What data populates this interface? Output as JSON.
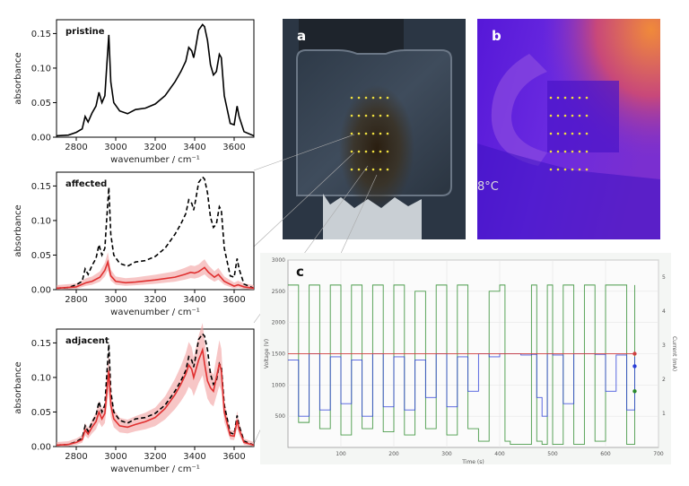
{
  "chart_data": [
    {
      "type": "line",
      "title": "pristine",
      "xlabel": "wavenumber / cm⁻¹",
      "ylabel": "absorbance",
      "xlim": [
        2700,
        3700
      ],
      "ylim": [
        0,
        0.17
      ],
      "xticks": [
        "2800",
        "3000",
        "3200",
        "3400",
        "3600"
      ],
      "yticks": [
        "0.00",
        "0.05",
        "0.10",
        "0.15"
      ],
      "series": [
        {
          "color": "#000000",
          "style": "solid",
          "x": [
            2700,
            2760,
            2800,
            2830,
            2845,
            2860,
            2880,
            2900,
            2915,
            2930,
            2945,
            2955,
            2965,
            2975,
            2990,
            3020,
            3060,
            3100,
            3150,
            3200,
            3250,
            3300,
            3330,
            3355,
            3370,
            3385,
            3395,
            3405,
            3420,
            3440,
            3450,
            3465,
            3480,
            3495,
            3510,
            3525,
            3535,
            3550,
            3580,
            3600,
            3615,
            3625,
            3650,
            3700
          ],
          "y": [
            0.002,
            0.003,
            0.007,
            0.012,
            0.03,
            0.022,
            0.035,
            0.045,
            0.065,
            0.05,
            0.06,
            0.105,
            0.148,
            0.08,
            0.05,
            0.038,
            0.034,
            0.04,
            0.042,
            0.048,
            0.06,
            0.08,
            0.095,
            0.11,
            0.13,
            0.125,
            0.115,
            0.13,
            0.155,
            0.163,
            0.16,
            0.14,
            0.105,
            0.09,
            0.095,
            0.12,
            0.115,
            0.06,
            0.02,
            0.018,
            0.045,
            0.03,
            0.008,
            0.002
          ]
        }
      ]
    },
    {
      "type": "line",
      "title": "affected",
      "xlabel": "wavenumber / cm⁻¹",
      "ylabel": "absorbance",
      "xlim": [
        2700,
        3700
      ],
      "ylim": [
        0,
        0.17
      ],
      "xticks": [
        "2800",
        "3000",
        "3200",
        "3400",
        "3600"
      ],
      "yticks": [
        "0.00",
        "0.05",
        "0.10",
        "0.15"
      ],
      "series": [
        {
          "color": "#000000",
          "style": "dashed",
          "x": [
            2700,
            2760,
            2800,
            2830,
            2845,
            2860,
            2880,
            2900,
            2915,
            2930,
            2945,
            2955,
            2965,
            2975,
            2990,
            3020,
            3060,
            3100,
            3150,
            3200,
            3250,
            3300,
            3330,
            3355,
            3370,
            3385,
            3395,
            3405,
            3420,
            3440,
            3450,
            3465,
            3480,
            3495,
            3510,
            3525,
            3535,
            3550,
            3580,
            3600,
            3615,
            3625,
            3650,
            3700
          ],
          "y": [
            0.002,
            0.003,
            0.007,
            0.012,
            0.03,
            0.022,
            0.035,
            0.045,
            0.065,
            0.05,
            0.06,
            0.105,
            0.148,
            0.08,
            0.05,
            0.038,
            0.034,
            0.04,
            0.042,
            0.048,
            0.06,
            0.08,
            0.095,
            0.11,
            0.13,
            0.125,
            0.115,
            0.13,
            0.155,
            0.163,
            0.16,
            0.14,
            0.105,
            0.09,
            0.095,
            0.12,
            0.115,
            0.06,
            0.02,
            0.018,
            0.045,
            0.03,
            0.008,
            0.002
          ]
        },
        {
          "color": "#e03030",
          "style": "solid",
          "x": [
            2700,
            2800,
            2850,
            2880,
            2920,
            2945,
            2960,
            2975,
            3000,
            3050,
            3100,
            3200,
            3300,
            3350,
            3380,
            3400,
            3420,
            3440,
            3450,
            3470,
            3500,
            3520,
            3550,
            3600,
            3620,
            3650,
            3700
          ],
          "y": [
            0.002,
            0.004,
            0.01,
            0.012,
            0.018,
            0.028,
            0.04,
            0.02,
            0.012,
            0.01,
            0.011,
            0.014,
            0.018,
            0.022,
            0.025,
            0.024,
            0.026,
            0.03,
            0.032,
            0.025,
            0.018,
            0.022,
            0.012,
            0.005,
            0.007,
            0.004,
            0.002
          ]
        }
      ]
    },
    {
      "type": "line",
      "title": "adjacent",
      "xlabel": "wavenumber / cm⁻¹",
      "ylabel": "absorbance",
      "xlim": [
        2700,
        3700
      ],
      "ylim": [
        0,
        0.17
      ],
      "xticks": [
        "2800",
        "3000",
        "3200",
        "3400",
        "3600"
      ],
      "yticks": [
        "0.00",
        "0.05",
        "0.10",
        "0.15"
      ],
      "series": [
        {
          "color": "#000000",
          "style": "dashed",
          "x": [
            2700,
            2760,
            2800,
            2830,
            2845,
            2860,
            2880,
            2900,
            2915,
            2930,
            2945,
            2955,
            2965,
            2975,
            2990,
            3020,
            3060,
            3100,
            3150,
            3200,
            3250,
            3300,
            3330,
            3355,
            3370,
            3385,
            3395,
            3405,
            3420,
            3440,
            3450,
            3465,
            3480,
            3495,
            3510,
            3525,
            3535,
            3550,
            3580,
            3600,
            3615,
            3625,
            3650,
            3700
          ],
          "y": [
            0.002,
            0.003,
            0.007,
            0.012,
            0.03,
            0.022,
            0.035,
            0.045,
            0.065,
            0.05,
            0.06,
            0.105,
            0.148,
            0.08,
            0.05,
            0.038,
            0.034,
            0.04,
            0.042,
            0.048,
            0.06,
            0.08,
            0.095,
            0.11,
            0.13,
            0.125,
            0.115,
            0.13,
            0.155,
            0.163,
            0.16,
            0.14,
            0.105,
            0.09,
            0.095,
            0.12,
            0.115,
            0.06,
            0.02,
            0.018,
            0.045,
            0.03,
            0.008,
            0.002
          ]
        },
        {
          "color": "#e03030",
          "style": "solid",
          "x": [
            2700,
            2760,
            2800,
            2830,
            2845,
            2860,
            2880,
            2900,
            2915,
            2930,
            2945,
            2955,
            2965,
            2975,
            2990,
            3020,
            3060,
            3100,
            3150,
            3200,
            3250,
            3300,
            3330,
            3355,
            3370,
            3385,
            3395,
            3405,
            3420,
            3440,
            3450,
            3465,
            3480,
            3495,
            3510,
            3525,
            3535,
            3550,
            3580,
            3600,
            3615,
            3625,
            3650,
            3700
          ],
          "y": [
            0.002,
            0.003,
            0.006,
            0.01,
            0.024,
            0.018,
            0.028,
            0.036,
            0.05,
            0.04,
            0.048,
            0.08,
            0.11,
            0.06,
            0.04,
            0.03,
            0.028,
            0.032,
            0.036,
            0.042,
            0.055,
            0.075,
            0.09,
            0.105,
            0.118,
            0.112,
            0.1,
            0.11,
            0.125,
            0.14,
            0.12,
            0.095,
            0.085,
            0.08,
            0.1,
            0.12,
            0.11,
            0.05,
            0.016,
            0.015,
            0.038,
            0.025,
            0.006,
            0.002
          ]
        }
      ]
    },
    {
      "type": "line",
      "title": "c",
      "xlabel": "Time (s)",
      "ylabel": "Voltage (V)",
      "y2label": "Current (mA)",
      "xlim": [
        0,
        700
      ],
      "ylim": [
        0,
        3000
      ],
      "y2lim": [
        0,
        5.5
      ],
      "xticks": [
        "100",
        "200",
        "300",
        "400",
        "500",
        "600",
        "700"
      ],
      "yticks": [
        "500",
        "1000",
        "1500",
        "2000",
        "2500",
        "3000"
      ],
      "y2ticks": [
        "1",
        "2",
        "3",
        "4",
        "5"
      ],
      "series": [
        {
          "color": "#2a8a2a",
          "style": "solid",
          "x": [
            0,
            20,
            40,
            60,
            80,
            100,
            120,
            140,
            160,
            180,
            200,
            220,
            240,
            260,
            280,
            300,
            320,
            340,
            360,
            380,
            400,
            410,
            420,
            440,
            460,
            470,
            480,
            490,
            500,
            520,
            540,
            560,
            580,
            600,
            620,
            640,
            655
          ],
          "y": [
            2600,
            400,
            2600,
            300,
            2600,
            200,
            2600,
            300,
            2600,
            250,
            2600,
            200,
            2500,
            300,
            2600,
            200,
            2600,
            300,
            100,
            2500,
            2600,
            100,
            50,
            50,
            2600,
            100,
            50,
            2600,
            50,
            2600,
            50,
            2600,
            100,
            2600,
            2600,
            50,
            2600
          ]
        },
        {
          "color": "#2a3ed8",
          "style": "solid",
          "x": [
            0,
            20,
            40,
            60,
            80,
            100,
            120,
            140,
            160,
            180,
            200,
            220,
            240,
            260,
            280,
            300,
            320,
            340,
            360,
            380,
            400,
            410,
            420,
            440,
            460,
            470,
            480,
            490,
            500,
            520,
            540,
            560,
            580,
            600,
            620,
            640,
            655
          ],
          "y": [
            1400,
            500,
            1500,
            600,
            1450,
            700,
            1400,
            500,
            1500,
            650,
            1450,
            600,
            1400,
            800,
            1500,
            650,
            1450,
            900,
            1500,
            1450,
            1500,
            1500,
            1500,
            1480,
            1490,
            800,
            500,
            1500,
            1480,
            700,
            1500,
            1500,
            1490,
            900,
            1480,
            600,
            1450
          ]
        },
        {
          "color": "#d04040",
          "style": "solid",
          "x": [
            0,
            655
          ],
          "y": [
            1500,
            1500
          ]
        }
      ]
    }
  ],
  "labels": {
    "panel_a": "a",
    "panel_b": "b",
    "thermo_text": "8°C"
  },
  "colors": {
    "grid_dots": "#f0e040",
    "thermal_bg": "#5a1fd0",
    "thermal_hot": "#e8783a"
  }
}
